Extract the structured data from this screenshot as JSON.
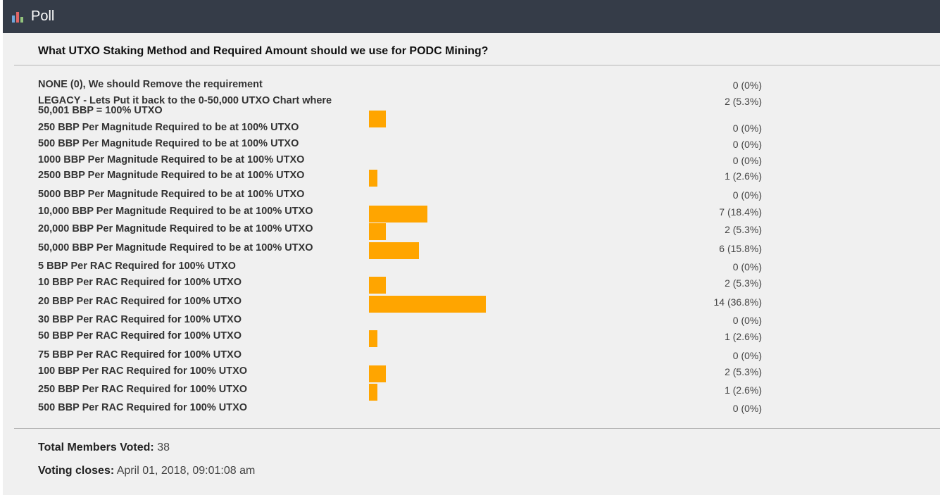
{
  "header": {
    "title": "Poll",
    "icon": "bar-chart-icon"
  },
  "question": "What UTXO Staking Method and Required Amount should we use for PODC Mining?",
  "options": [
    {
      "label": "NONE (0), We should Remove the requirement",
      "votes": 0,
      "result": "0 (0%)",
      "percent": 0
    },
    {
      "label": "LEGACY - Lets Put it back to the 0-50,000 UTXO Chart where 50,001 BBP = 100% UTXO",
      "votes": 2,
      "result": "2 (5.3%)",
      "percent": 5.3
    },
    {
      "label": "250 BBP Per Magnitude Required to be at 100% UTXO",
      "votes": 0,
      "result": "0 (0%)",
      "percent": 0
    },
    {
      "label": "500 BBP Per Magnitude Required to be at 100% UTXO",
      "votes": 0,
      "result": "0 (0%)",
      "percent": 0
    },
    {
      "label": "1000 BBP Per Magnitude Required to be at 100% UTXO",
      "votes": 0,
      "result": "0 (0%)",
      "percent": 0
    },
    {
      "label": "2500 BBP Per Magnitude Required to be at 100% UTXO",
      "votes": 1,
      "result": "1 (2.6%)",
      "percent": 2.6
    },
    {
      "label": "5000 BBP Per Magnitude Required to be at 100% UTXO",
      "votes": 0,
      "result": "0 (0%)",
      "percent": 0
    },
    {
      "label": "10,000 BBP Per Magnitude Required to be at 100% UTXO",
      "votes": 7,
      "result": "7 (18.4%)",
      "percent": 18.4
    },
    {
      "label": "20,000 BBP Per Magnitude Required to be at 100% UTXO",
      "votes": 2,
      "result": "2 (5.3%)",
      "percent": 5.3
    },
    {
      "label": "50,000 BBP Per Magnitude Required to be at 100% UTXO",
      "votes": 6,
      "result": "6 (15.8%)",
      "percent": 15.8
    },
    {
      "label": "5 BBP Per RAC Required for 100% UTXO",
      "votes": 0,
      "result": "0 (0%)",
      "percent": 0
    },
    {
      "label": "10 BBP Per RAC Required for 100% UTXO",
      "votes": 2,
      "result": "2 (5.3%)",
      "percent": 5.3
    },
    {
      "label": "20 BBP Per RAC Required for 100% UTXO",
      "votes": 14,
      "result": "14 (36.8%)",
      "percent": 36.8
    },
    {
      "label": "30 BBP Per RAC Required for 100% UTXO",
      "votes": 0,
      "result": "0 (0%)",
      "percent": 0
    },
    {
      "label": "50 BBP Per RAC Required for 100% UTXO",
      "votes": 1,
      "result": "1 (2.6%)",
      "percent": 2.6
    },
    {
      "label": "75 BBP Per RAC Required for 100% UTXO",
      "votes": 0,
      "result": "0 (0%)",
      "percent": 0
    },
    {
      "label": "100 BBP Per RAC Required for 100% UTXO",
      "votes": 2,
      "result": "2 (5.3%)",
      "percent": 5.3
    },
    {
      "label": "250 BBP Per RAC Required for 100% UTXO",
      "votes": 1,
      "result": "1 (2.6%)",
      "percent": 2.6
    },
    {
      "label": "500 BBP Per RAC Required for 100% UTXO",
      "votes": 0,
      "result": "0 (0%)",
      "percent": 0
    }
  ],
  "footer": {
    "total_label": "Total Members Voted:",
    "total_value": "38",
    "closes_label": "Voting closes:",
    "closes_value": "April 01, 2018, 09:01:08 am"
  },
  "colors": {
    "header_bg": "#353c48",
    "bar": "#ffa500",
    "panel_bg": "#f0f0f0"
  }
}
